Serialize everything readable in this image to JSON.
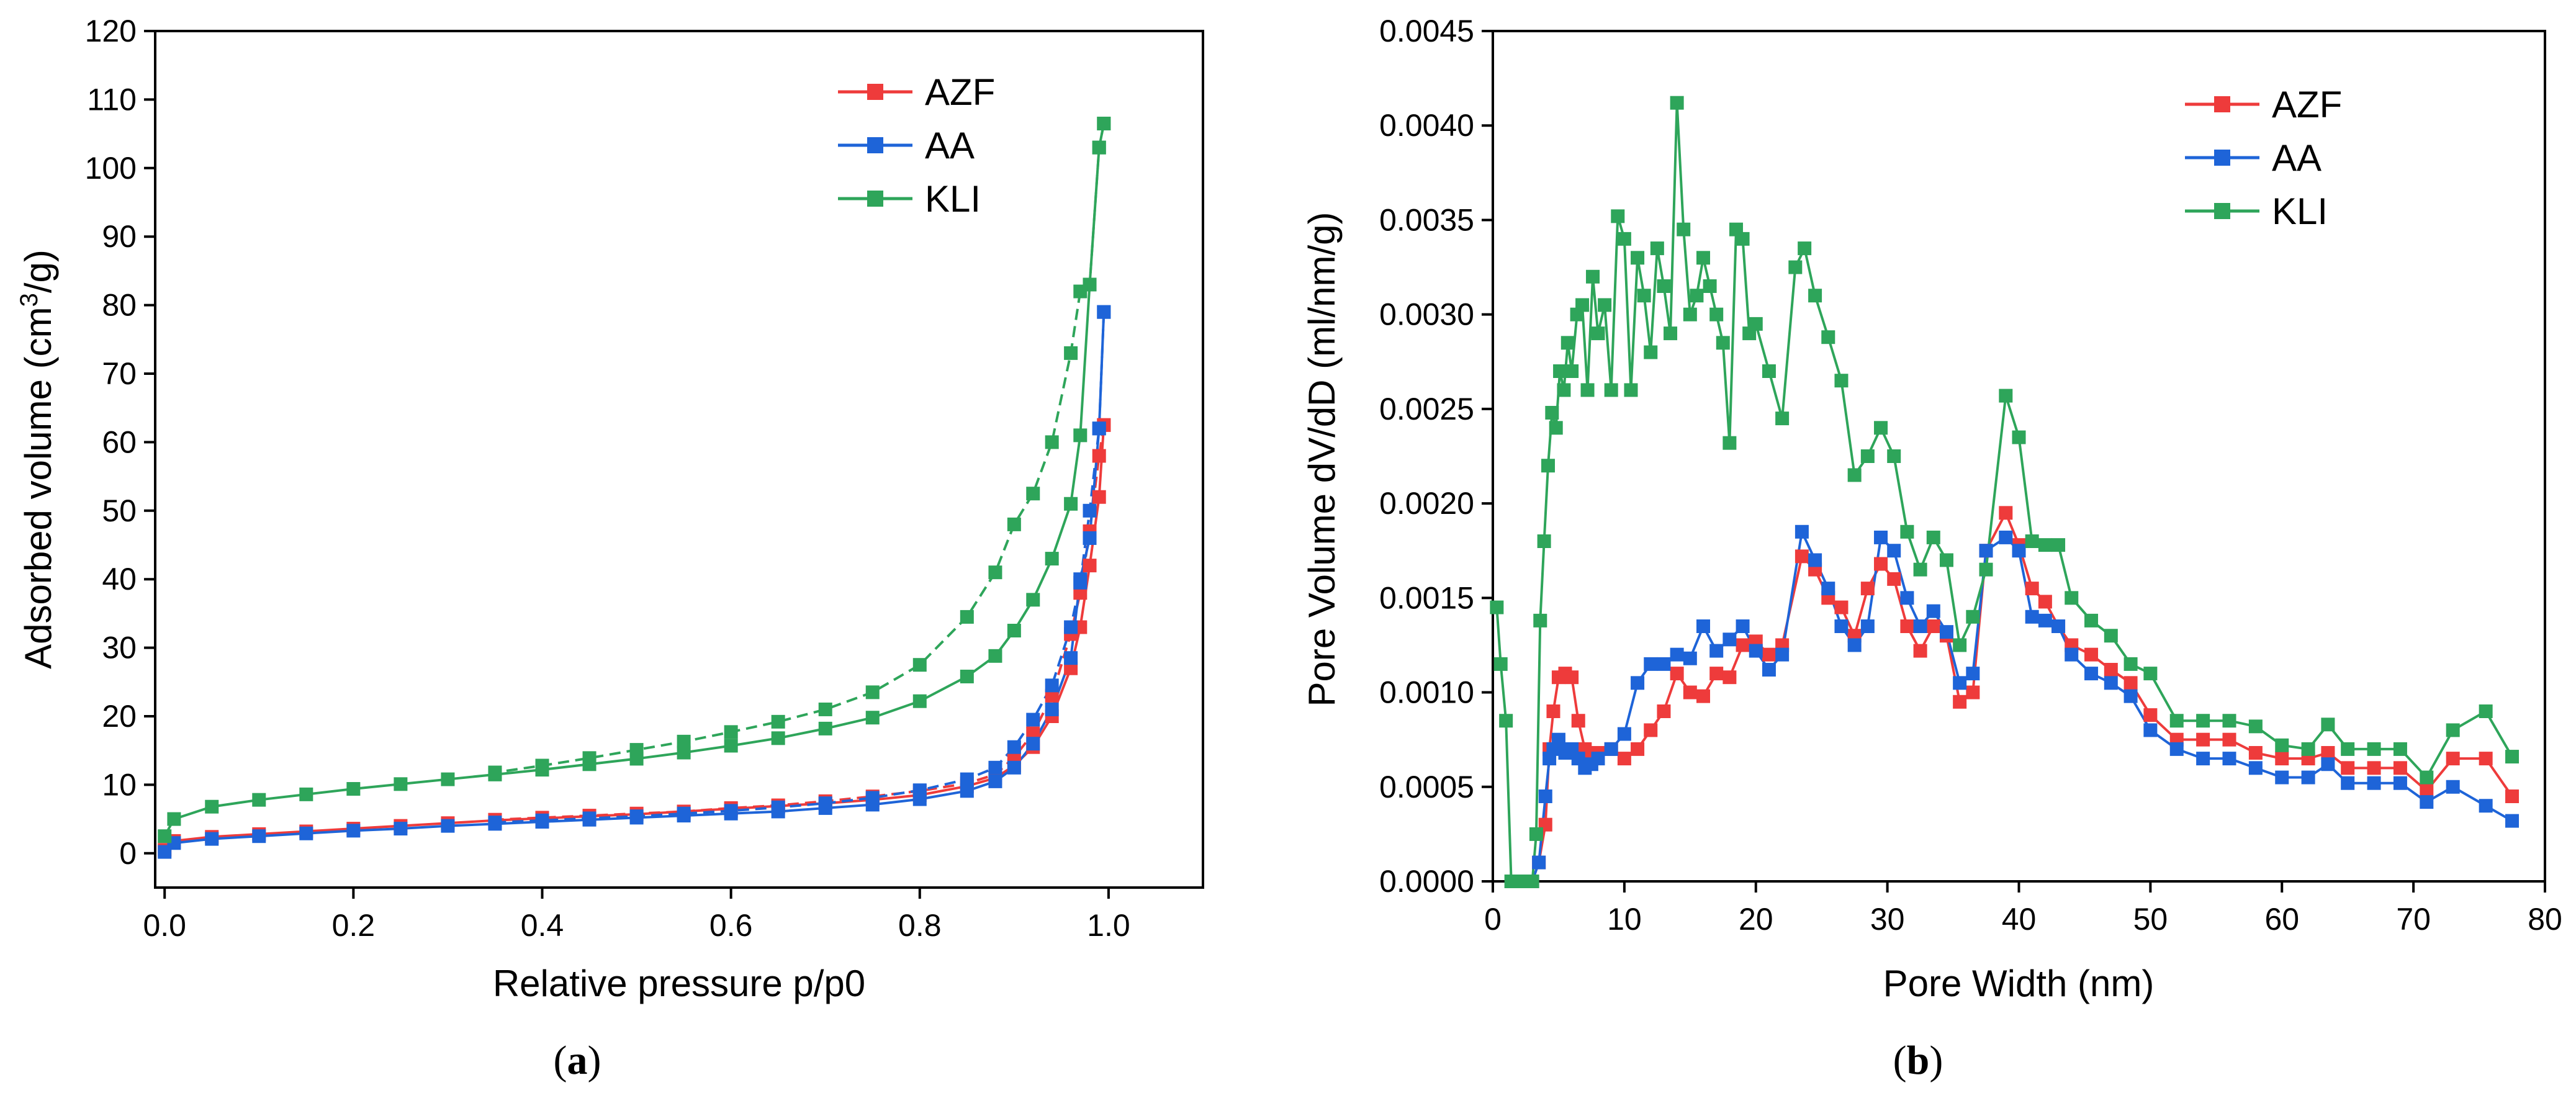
{
  "colors": {
    "AZF": "#ee3b3b",
    "AA": "#1e64d8",
    "KLI": "#2ea55a"
  },
  "chart_data": [
    {
      "type": "line",
      "id": "a",
      "caption_open": "(",
      "caption_letter": "a",
      "caption_close": ")",
      "title": "",
      "xlabel": "Relative pressure p/p0",
      "ylabel_pre": "Adsorbed volume (cm",
      "ylabel_sup": "3",
      "ylabel_post": "/g)",
      "xlim": [
        -0.01,
        1.1
      ],
      "ylim": [
        -5,
        120
      ],
      "xticks": [
        0.0,
        0.2,
        0.4,
        0.6,
        0.8,
        1.0
      ],
      "xtick_labels": [
        "0.0",
        "0.2",
        "0.4",
        "0.6",
        "0.8",
        "1.0"
      ],
      "yticks": [
        0,
        10,
        20,
        30,
        40,
        50,
        60,
        70,
        80,
        90,
        100,
        110,
        120
      ],
      "ytick_labels": [
        "0",
        "10",
        "20",
        "30",
        "40",
        "50",
        "60",
        "70",
        "80",
        "90",
        "100",
        "110",
        "120"
      ],
      "legend_position": "top-right",
      "series": [
        {
          "name": "AZF",
          "lines": [
            {
              "style": "solid",
              "x": [
                0,
                0.01,
                0.05,
                0.1,
                0.15,
                0.2,
                0.25,
                0.3,
                0.35,
                0.4,
                0.45,
                0.5,
                0.55,
                0.6,
                0.65,
                0.7,
                0.75,
                0.8,
                0.85,
                0.88,
                0.9,
                0.92,
                0.94,
                0.96,
                0.97,
                0.98,
                0.99,
                0.995
              ],
              "y": [
                0.5,
                1.8,
                2.4,
                2.8,
                3.2,
                3.6,
                4.0,
                4.4,
                4.8,
                5.1,
                5.4,
                5.7,
                6.1,
                6.5,
                6.9,
                7.3,
                7.8,
                8.5,
                9.8,
                11.0,
                12.8,
                15.5,
                20.0,
                27.0,
                33.0,
                42.0,
                52.0,
                62.5
              ]
            },
            {
              "style": "dashed",
              "x": [
                0.995,
                0.99,
                0.98,
                0.97,
                0.96,
                0.94,
                0.92,
                0.9,
                0.88,
                0.85,
                0.8,
                0.75,
                0.7,
                0.65,
                0.6,
                0.55,
                0.5,
                0.45,
                0.4,
                0.35
              ],
              "y": [
                62.5,
                58.0,
                47.0,
                38.0,
                32.0,
                23.0,
                17.5,
                14.0,
                11.5,
                10.2,
                9.1,
                8.3,
                7.6,
                7.0,
                6.6,
                6.1,
                5.8,
                5.5,
                5.2,
                4.9
              ]
            }
          ]
        },
        {
          "name": "AA",
          "lines": [
            {
              "style": "solid",
              "x": [
                0,
                0.01,
                0.05,
                0.1,
                0.15,
                0.2,
                0.25,
                0.3,
                0.35,
                0.4,
                0.45,
                0.5,
                0.55,
                0.6,
                0.65,
                0.7,
                0.75,
                0.8,
                0.85,
                0.88,
                0.9,
                0.92,
                0.94,
                0.96,
                0.97,
                0.98,
                0.99,
                0.995
              ],
              "y": [
                0.2,
                1.5,
                2.1,
                2.5,
                2.9,
                3.3,
                3.6,
                4.0,
                4.3,
                4.6,
                4.9,
                5.2,
                5.5,
                5.8,
                6.1,
                6.6,
                7.1,
                7.9,
                9.1,
                10.5,
                12.5,
                16.0,
                21.0,
                28.5,
                40.0,
                46.0,
                62.0,
                79.0
              ]
            },
            {
              "style": "dashed",
              "x": [
                0.995,
                0.99,
                0.98,
                0.97,
                0.96,
                0.94,
                0.92,
                0.9,
                0.88,
                0.85,
                0.8,
                0.75,
                0.7,
                0.65,
                0.6,
                0.55,
                0.5,
                0.45,
                0.4,
                0.35
              ],
              "y": [
                79.0,
                62.0,
                50.0,
                39.5,
                33.0,
                24.5,
                19.5,
                15.5,
                12.5,
                10.8,
                9.2,
                8.1,
                7.3,
                6.7,
                6.2,
                5.8,
                5.4,
                5.1,
                4.8,
                4.5
              ]
            }
          ]
        },
        {
          "name": "KLI",
          "lines": [
            {
              "style": "solid",
              "x": [
                0,
                0.01,
                0.05,
                0.1,
                0.15,
                0.2,
                0.25,
                0.3,
                0.35,
                0.4,
                0.45,
                0.5,
                0.55,
                0.6,
                0.65,
                0.7,
                0.75,
                0.8,
                0.85,
                0.88,
                0.9,
                0.92,
                0.94,
                0.96,
                0.97,
                0.98,
                0.99,
                0.995
              ],
              "y": [
                2.5,
                5.0,
                6.8,
                7.8,
                8.6,
                9.4,
                10.1,
                10.8,
                11.5,
                12.2,
                13.0,
                13.8,
                14.7,
                15.7,
                16.8,
                18.2,
                19.8,
                22.2,
                25.8,
                28.8,
                32.5,
                37.0,
                43.0,
                51.0,
                61.0,
                83.0,
                103.0,
                106.5
              ]
            },
            {
              "style": "dashed",
              "x": [
                0.995,
                0.99,
                0.98,
                0.97,
                0.96,
                0.94,
                0.92,
                0.9,
                0.88,
                0.85,
                0.8,
                0.75,
                0.7,
                0.65,
                0.6,
                0.55,
                0.5,
                0.45,
                0.4,
                0.35
              ],
              "y": [
                106.5,
                103.0,
                83.0,
                82.0,
                73.0,
                60.0,
                52.5,
                48.0,
                41.0,
                34.5,
                27.5,
                23.5,
                21.0,
                19.2,
                17.7,
                16.3,
                15.1,
                13.9,
                12.8,
                11.8
              ]
            }
          ]
        }
      ]
    },
    {
      "type": "line",
      "id": "b",
      "caption_open": "(",
      "caption_letter": "b",
      "caption_close": ")",
      "title": "",
      "xlabel": "Pore Width (nm)",
      "ylabel": "Pore Volume dV/dD (ml/nm/g)",
      "xlim": [
        0,
        80
      ],
      "ylim": [
        0,
        0.0045
      ],
      "xticks": [
        0,
        10,
        20,
        30,
        40,
        50,
        60,
        70,
        80
      ],
      "xtick_labels": [
        "0",
        "10",
        "20",
        "30",
        "40",
        "50",
        "60",
        "70",
        "80"
      ],
      "yticks": [
        0,
        0.0005,
        0.001,
        0.0015,
        0.002,
        0.0025,
        0.003,
        0.0035,
        0.004,
        0.0045
      ],
      "ytick_labels": [
        "0.0000",
        "0.0005",
        "0.0010",
        "0.0015",
        "0.0020",
        "0.0025",
        "0.0030",
        "0.0035",
        "0.0040",
        "0.0045"
      ],
      "legend_position": "top-right",
      "series": [
        {
          "name": "AZF",
          "x": [
            3.0,
            3.5,
            4.0,
            4.3,
            4.6,
            5.0,
            5.5,
            6.0,
            6.5,
            7.0,
            7.5,
            8.0,
            9.0,
            10.0,
            11.0,
            12.0,
            13.0,
            14.0,
            15.0,
            16.0,
            17.0,
            18.0,
            19.0,
            20.0,
            21.0,
            22.0,
            23.5,
            24.5,
            25.5,
            26.5,
            27.5,
            28.5,
            29.5,
            30.5,
            31.5,
            32.5,
            33.5,
            34.5,
            35.5,
            36.5,
            37.5,
            39.0,
            40.0,
            41.0,
            42.0,
            43.0,
            44.0,
            45.5,
            47.0,
            48.5,
            50.0,
            52.0,
            54.0,
            56.0,
            58.0,
            60.0,
            62.0,
            63.5,
            65.0,
            67.0,
            69.0,
            71.0,
            73.0,
            75.5,
            77.5
          ],
          "y": [
            0.0,
            0.0001,
            0.0003,
            0.0007,
            0.0009,
            0.00108,
            0.0011,
            0.00108,
            0.00085,
            0.0007,
            0.00065,
            0.00068,
            0.0007,
            0.00065,
            0.0007,
            0.0008,
            0.0009,
            0.0011,
            0.001,
            0.00098,
            0.0011,
            0.00108,
            0.00125,
            0.00127,
            0.0012,
            0.00125,
            0.00172,
            0.00165,
            0.0015,
            0.00145,
            0.0013,
            0.00155,
            0.00168,
            0.0016,
            0.00135,
            0.00122,
            0.00135,
            0.0013,
            0.00095,
            0.001,
            0.00175,
            0.00195,
            0.00178,
            0.00155,
            0.00148,
            0.00135,
            0.00125,
            0.0012,
            0.00112,
            0.00105,
            0.00088,
            0.00075,
            0.00075,
            0.00075,
            0.00068,
            0.00065,
            0.00065,
            0.00068,
            0.0006,
            0.0006,
            0.0006,
            0.00048,
            0.00065,
            0.00065,
            0.00045
          ]
        },
        {
          "name": "AA",
          "x": [
            3.0,
            3.5,
            4.0,
            4.3,
            4.6,
            5.0,
            5.5,
            6.0,
            6.5,
            7.0,
            7.5,
            8.0,
            9.0,
            10.0,
            11.0,
            12.0,
            13.0,
            14.0,
            15.0,
            16.0,
            17.0,
            18.0,
            19.0,
            20.0,
            21.0,
            22.0,
            23.5,
            24.5,
            25.5,
            26.5,
            27.5,
            28.5,
            29.5,
            30.5,
            31.5,
            32.5,
            33.5,
            34.5,
            35.5,
            36.5,
            37.5,
            39.0,
            40.0,
            41.0,
            42.0,
            43.0,
            44.0,
            45.5,
            47.0,
            48.5,
            50.0,
            52.0,
            54.0,
            56.0,
            58.0,
            60.0,
            62.0,
            63.5,
            65.0,
            67.0,
            69.0,
            71.0,
            73.0,
            75.5,
            77.5
          ],
          "y": [
            0.0,
            0.0001,
            0.00045,
            0.00065,
            0.0007,
            0.00075,
            0.00068,
            0.0007,
            0.00065,
            0.0006,
            0.00062,
            0.00065,
            0.0007,
            0.00078,
            0.00105,
            0.00115,
            0.00115,
            0.0012,
            0.00118,
            0.00135,
            0.00122,
            0.00128,
            0.00135,
            0.00122,
            0.00112,
            0.0012,
            0.00185,
            0.0017,
            0.00155,
            0.00135,
            0.00125,
            0.00135,
            0.00182,
            0.00175,
            0.0015,
            0.00135,
            0.00143,
            0.00132,
            0.00105,
            0.0011,
            0.00175,
            0.00182,
            0.00175,
            0.0014,
            0.00138,
            0.00135,
            0.0012,
            0.0011,
            0.00105,
            0.00098,
            0.0008,
            0.0007,
            0.00065,
            0.00065,
            0.0006,
            0.00055,
            0.00055,
            0.00062,
            0.00052,
            0.00052,
            0.00052,
            0.00042,
            0.0005,
            0.0004,
            0.00032
          ]
        },
        {
          "name": "KLI",
          "x": [
            0.3,
            0.6,
            1.0,
            1.4,
            1.8,
            2.2,
            2.6,
            3.0,
            3.3,
            3.6,
            3.9,
            4.2,
            4.5,
            4.8,
            5.1,
            5.4,
            5.7,
            6.0,
            6.4,
            6.8,
            7.2,
            7.6,
            8.0,
            8.5,
            9.0,
            9.5,
            10.0,
            10.5,
            11.0,
            11.5,
            12.0,
            12.5,
            13.0,
            13.5,
            14.0,
            14.5,
            15.0,
            15.5,
            16.0,
            16.5,
            17.0,
            17.5,
            18.0,
            18.5,
            19.0,
            19.5,
            20.0,
            21.0,
            22.0,
            23.0,
            23.7,
            24.5,
            25.5,
            26.5,
            27.5,
            28.5,
            29.5,
            30.5,
            31.5,
            32.5,
            33.5,
            34.5,
            35.5,
            36.5,
            37.5,
            39.0,
            40.0,
            41.0,
            42.0,
            43.0,
            44.0,
            45.5,
            47.0,
            48.5,
            50.0,
            52.0,
            54.0,
            56.0,
            58.0,
            60.0,
            62.0,
            63.5,
            65.0,
            67.0,
            69.0,
            71.0,
            73.0,
            75.5,
            77.5
          ],
          "y": [
            0.00145,
            0.00115,
            0.00085,
            0.0,
            0.0,
            0.0,
            0.0,
            0.0,
            0.00025,
            0.00138,
            0.0018,
            0.0022,
            0.00248,
            0.0024,
            0.0027,
            0.0026,
            0.00285,
            0.0027,
            0.003,
            0.00305,
            0.0026,
            0.0032,
            0.0029,
            0.00305,
            0.0026,
            0.00352,
            0.0034,
            0.0026,
            0.0033,
            0.0031,
            0.0028,
            0.00335,
            0.00315,
            0.0029,
            0.00412,
            0.00345,
            0.003,
            0.0031,
            0.0033,
            0.00315,
            0.003,
            0.00285,
            0.00232,
            0.00345,
            0.0034,
            0.0029,
            0.00295,
            0.0027,
            0.00245,
            0.00325,
            0.00335,
            0.0031,
            0.00288,
            0.00265,
            0.00215,
            0.00225,
            0.0024,
            0.00225,
            0.00185,
            0.00165,
            0.00182,
            0.0017,
            0.00125,
            0.0014,
            0.00165,
            0.00257,
            0.00235,
            0.0018,
            0.00178,
            0.00178,
            0.0015,
            0.00138,
            0.0013,
            0.00115,
            0.0011,
            0.00085,
            0.00085,
            0.00085,
            0.00082,
            0.00072,
            0.0007,
            0.00083,
            0.0007,
            0.0007,
            0.0007,
            0.00055,
            0.0008,
            0.0009,
            0.00066
          ]
        }
      ]
    }
  ]
}
